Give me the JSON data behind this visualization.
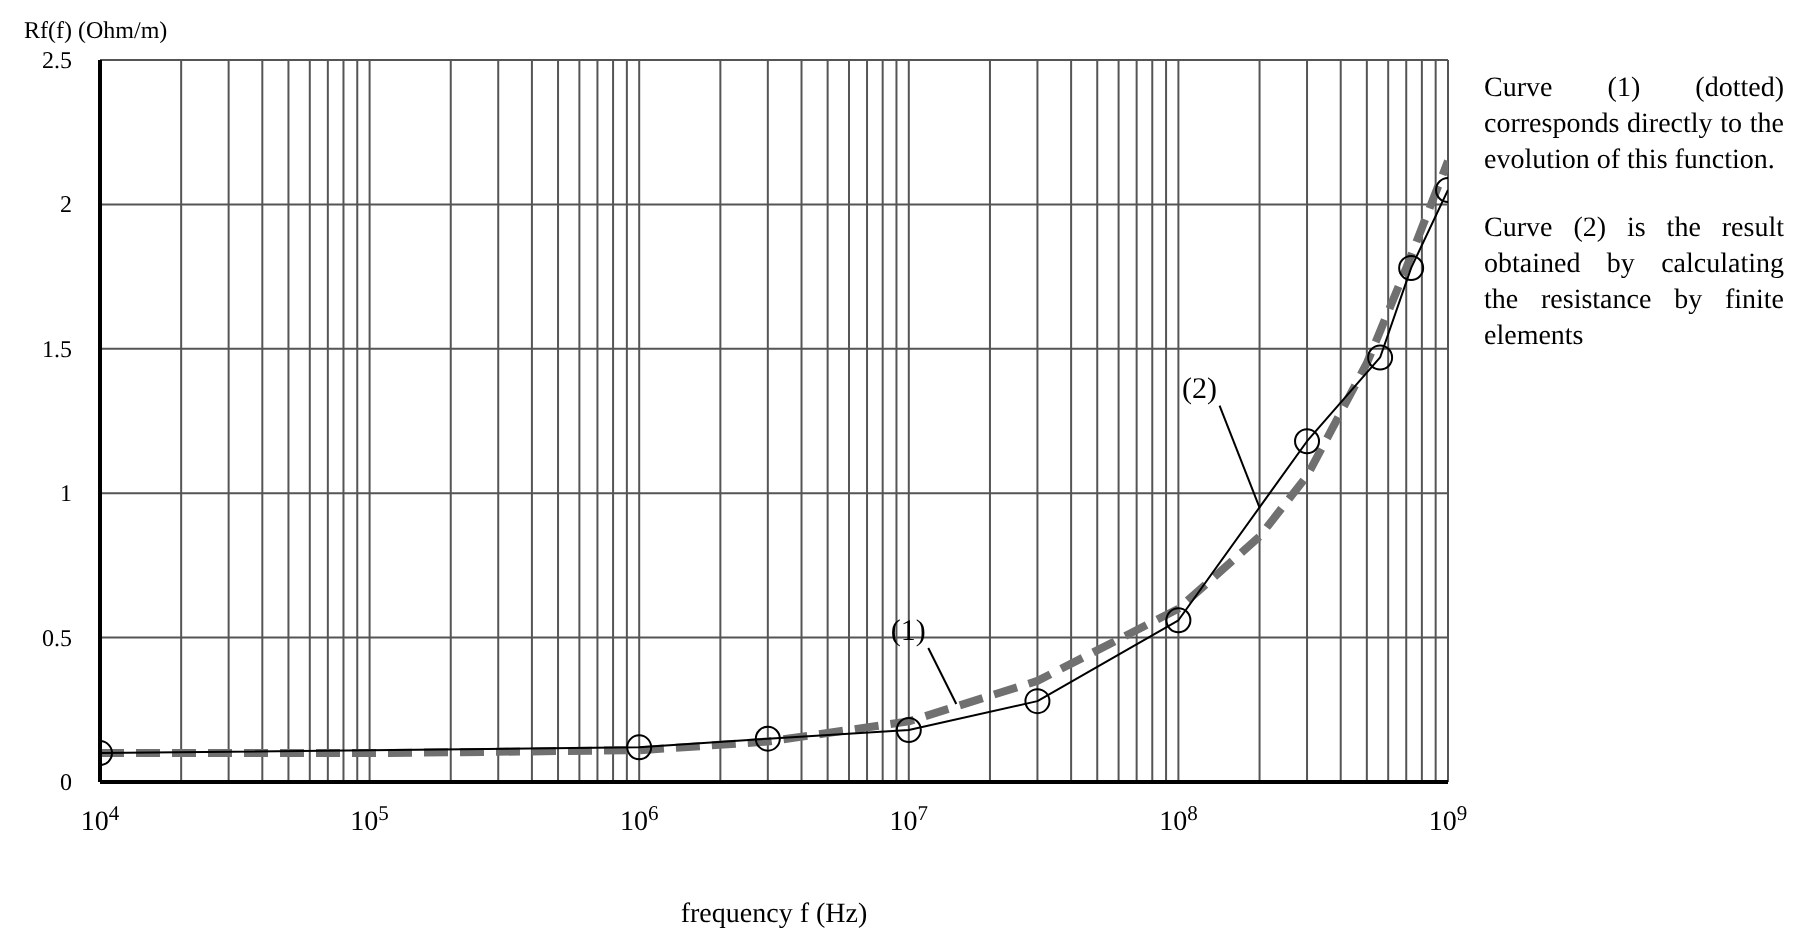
{
  "chart_data": {
    "type": "line",
    "xlabel": "frequency f (Hz)",
    "ylabel": "Rf(f) (Ohm/m)",
    "log": "x",
    "grid": true,
    "xlim": [
      10000,
      1000000000
    ],
    "ylim": [
      0,
      2.5
    ],
    "yticks": [
      0,
      0.5,
      1,
      1.5,
      2,
      2.5
    ],
    "xticks": [
      {
        "value": 10000,
        "label": "10$^{4}$"
      },
      {
        "value": 20000,
        "label": null
      },
      {
        "value": 30000,
        "label": null
      },
      {
        "value": 40000,
        "label": null
      },
      {
        "value": 50000,
        "label": null
      },
      {
        "value": 60000,
        "label": null
      },
      {
        "value": 70000,
        "label": null
      },
      {
        "value": 80000,
        "label": null
      },
      {
        "value": 90000,
        "label": null
      },
      {
        "value": 100000,
        "label": "10$^{5}$"
      },
      {
        "value": 200000,
        "label": null
      },
      {
        "value": 300000,
        "label": null
      },
      {
        "value": 400000,
        "label": null
      },
      {
        "value": 500000,
        "label": null
      },
      {
        "value": 600000,
        "label": null
      },
      {
        "value": 700000,
        "label": null
      },
      {
        "value": 800000,
        "label": null
      },
      {
        "value": 900000,
        "label": null
      },
      {
        "value": 1000000,
        "label": "10$^{6}$"
      },
      {
        "value": 2000000,
        "label": null
      },
      {
        "value": 3000000,
        "label": null
      },
      {
        "value": 4000000,
        "label": null
      },
      {
        "value": 5000000,
        "label": null
      },
      {
        "value": 6000000,
        "label": null
      },
      {
        "value": 7000000,
        "label": null
      },
      {
        "value": 8000000,
        "label": null
      },
      {
        "value": 9000000,
        "label": null
      },
      {
        "value": 10000000,
        "label": "10$^{7}$"
      },
      {
        "value": 20000000,
        "label": null
      },
      {
        "value": 30000000,
        "label": null
      },
      {
        "value": 40000000,
        "label": null
      },
      {
        "value": 50000000,
        "label": null
      },
      {
        "value": 60000000,
        "label": null
      },
      {
        "value": 70000000,
        "label": null
      },
      {
        "value": 80000000,
        "label": null
      },
      {
        "value": 90000000,
        "label": null
      },
      {
        "value": 100000000,
        "label": "10$^{8}$"
      },
      {
        "value": 200000000,
        "label": null
      },
      {
        "value": 300000000,
        "label": null
      },
      {
        "value": 400000000,
        "label": null
      },
      {
        "value": 500000000,
        "label": null
      },
      {
        "value": 600000000,
        "label": null
      },
      {
        "value": 700000000,
        "label": null
      },
      {
        "value": 800000000,
        "label": null
      },
      {
        "value": 900000000,
        "label": null
      },
      {
        "value": 1000000000,
        "label": "10$^{9}$"
      }
    ],
    "series": [
      {
        "color": "#707070",
        "line_style": "dashed",
        "marker": "none",
        "x": [
          10000,
          100000,
          1000000,
          3000000,
          10000000,
          30000000,
          100000000,
          200000000,
          300000000,
          500000000,
          700000000,
          1000000000
        ],
        "values": [
          0.1,
          0.1,
          0.11,
          0.14,
          0.21,
          0.35,
          0.6,
          0.85,
          1.06,
          1.45,
          1.78,
          2.15
        ]
      },
      {
        "color": "#000000",
        "line_style": "solid",
        "marker": "circle",
        "x": [
          10000,
          1000000,
          3000000,
          10000000,
          30000000,
          100000000,
          300000000,
          560000000,
          730000000,
          1000000000
        ],
        "values": [
          0.1,
          0.12,
          0.15,
          0.18,
          0.28,
          0.56,
          1.18,
          1.47,
          1.78,
          2.05
        ]
      }
    ],
    "annotations": [
      {
        "text": "(1)",
        "x": 15000000,
        "y": 0.27
      },
      {
        "text": "(2)",
        "x": 200000000,
        "y": 0.95
      },
      "Curve (1) (dotted) corresponds directly to the evolution of this function.",
      "Curve (2) is the result obtained by calculating the resistance by finite elements"
    ]
  }
}
